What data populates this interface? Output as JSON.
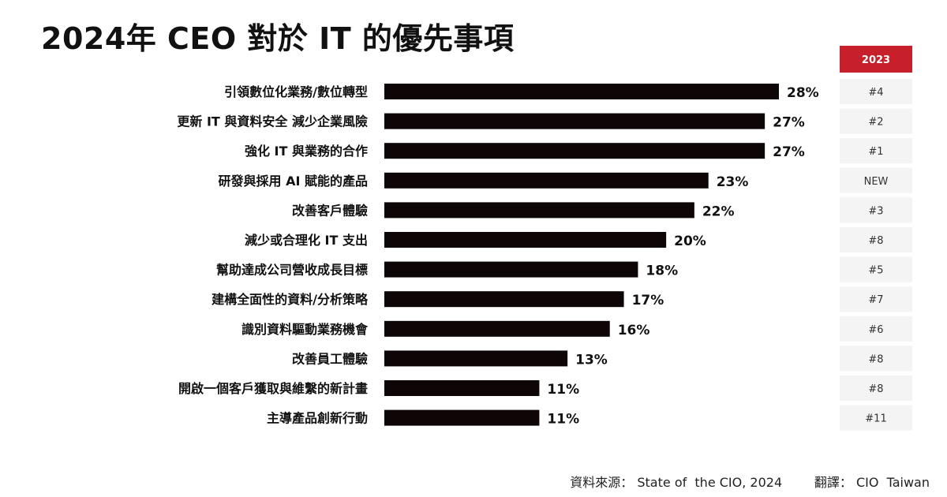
{
  "title": "2024年 CEO 對於 IT 的優先事項",
  "chart_data": {
    "type": "bar",
    "orientation": "horizontal",
    "categories": [
      "引領數位化業務/數位轉型",
      "更新  IT 與資料安全 減少企業風險",
      "強化 IT 與業務的合作",
      "研發與採用 AI 賦能的產品",
      "改善客戶體驗",
      "減少或合理化  IT 支出",
      "幫助達成公司營收成長目標",
      "建構全面性的資料/分析策略",
      "識別資料驅動業務機會",
      "改善員工體驗",
      "開啟一個客戶獲取與維繫的新計畫",
      "主導產品創新行動"
    ],
    "values": [
      28,
      27,
      27,
      23,
      22,
      20,
      18,
      17,
      16,
      13,
      11,
      11
    ],
    "value_labels": [
      "28%",
      "27%",
      "27%",
      "23%",
      "22%",
      "20%",
      "18%",
      "17%",
      "16%",
      "13%",
      "11%",
      "11%"
    ],
    "xlim": [
      0,
      28
    ],
    "bar_color": "#0d0506",
    "rank_column": {
      "header": "2023",
      "header_color": "#c8202a",
      "values": [
        "#4",
        "#2",
        "#1",
        "NEW",
        "#3",
        "#8",
        "#5",
        "#7",
        "#6",
        "#8",
        "#8",
        "#11"
      ]
    }
  },
  "source": {
    "label": "資料來源：",
    "text": "State of  the CIO, 2024",
    "translation_label": "翻譯：",
    "translation_text": "CIO  Taiwan"
  }
}
